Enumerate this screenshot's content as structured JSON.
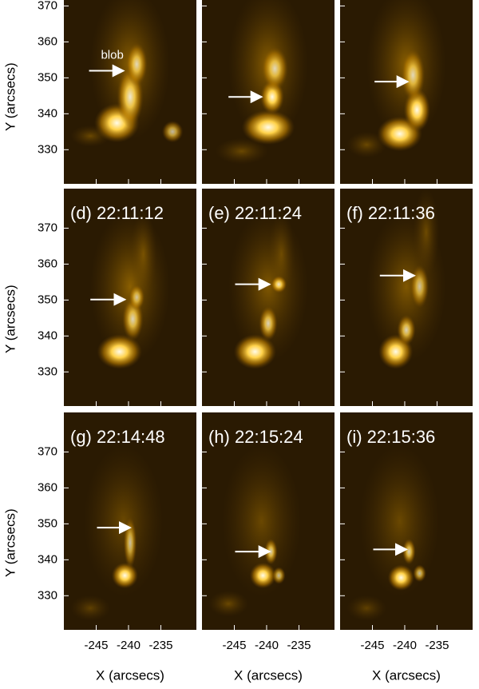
{
  "chart_data": {
    "type": "image-grid",
    "xlabel": "X (arcsecs)",
    "ylabel": "Y (arcsecs)",
    "xlim": [
      -250,
      -229.5
    ],
    "ylim": [
      320.5,
      381
    ],
    "xticks": [
      -245,
      -240,
      -235
    ],
    "yticks": [
      330,
      340,
      350,
      360,
      370
    ],
    "annotation": "blob",
    "panels": [
      {
        "label": null
      },
      {
        "label": null
      },
      {
        "label": null
      },
      {
        "label": "(d) 22:11:12"
      },
      {
        "label": "(e) 22:11:24"
      },
      {
        "label": "(f) 22:11:36"
      },
      {
        "label": "(g) 22:14:48"
      },
      {
        "label": "(h) 22:15:24"
      },
      {
        "label": "(i) 22:15:36"
      }
    ]
  }
}
